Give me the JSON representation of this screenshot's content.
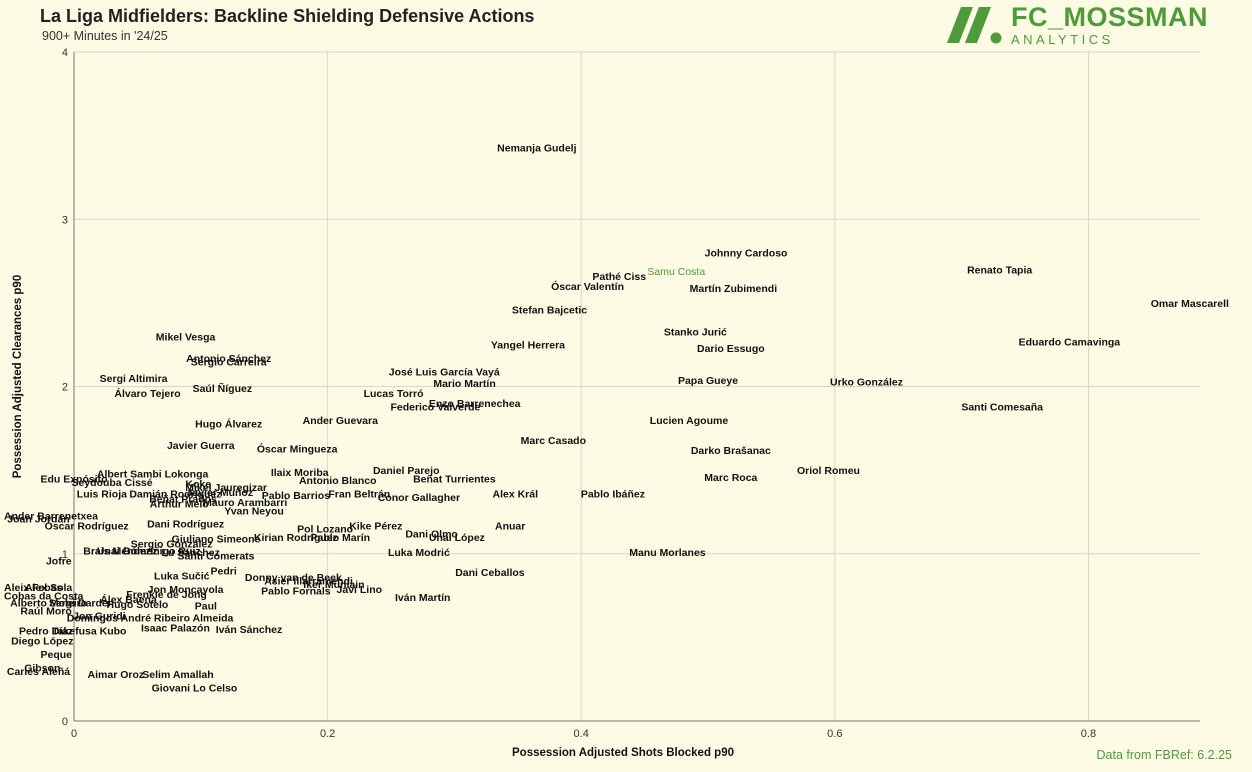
{
  "header": {
    "title": "La Liga Midfielders: Backline Shielding Defensive Actions",
    "subtitle": "900+ Minutes in '24/25"
  },
  "logo": {
    "main": "FC_MOSSMAN",
    "sub": "ANALYTICS"
  },
  "footer": {
    "source": "Data from FBRef: 6.2.25"
  },
  "colors": {
    "background": "#fdfbe3",
    "accent": "#4f9a3b",
    "grid": "#d9d6c4",
    "text": "#111111"
  },
  "chart_data": {
    "type": "scatter",
    "xlabel": "Possession Adjusted Shots Blocked p90",
    "ylabel": "Possession Adjusted Clearances p90",
    "xlim": [
      0,
      0.88
    ],
    "ylim": [
      0,
      4
    ],
    "xticks": [
      0,
      0.2,
      0.4,
      0.6,
      0.8
    ],
    "yticks": [
      0,
      1,
      2,
      3,
      4
    ],
    "grid": true,
    "highlight": "Samu Costa",
    "points": [
      {
        "label": "Nemanja Gudelj",
        "x": 0.365,
        "y": 3.43
      },
      {
        "label": "Johnny Cardoso",
        "x": 0.53,
        "y": 2.8
      },
      {
        "label": "Samu Costa",
        "x": 0.475,
        "y": 2.69
      },
      {
        "label": "Pathé Ciss",
        "x": 0.43,
        "y": 2.66
      },
      {
        "label": "Óscar Valentín",
        "x": 0.405,
        "y": 2.6
      },
      {
        "label": "Martín Zubimendi",
        "x": 0.52,
        "y": 2.59
      },
      {
        "label": "Renato Tapia",
        "x": 0.73,
        "y": 2.7
      },
      {
        "label": "Omar Mascarell",
        "x": 0.88,
        "y": 2.5
      },
      {
        "label": "Stefan Bajcetic",
        "x": 0.375,
        "y": 2.46
      },
      {
        "label": "Stanko Jurić",
        "x": 0.49,
        "y": 2.33
      },
      {
        "label": "Eduardo Camavinga",
        "x": 0.785,
        "y": 2.27
      },
      {
        "label": "Yangel Herrera",
        "x": 0.358,
        "y": 2.25
      },
      {
        "label": "Dario Essugo",
        "x": 0.518,
        "y": 2.23
      },
      {
        "label": "Mikel Vesga",
        "x": 0.088,
        "y": 2.3
      },
      {
        "label": "Antonio Sánchez",
        "x": 0.122,
        "y": 2.17
      },
      {
        "label": "Sergio Carreira",
        "x": 0.122,
        "y": 2.15
      },
      {
        "label": "José Luis García Vayá",
        "x": 0.292,
        "y": 2.09
      },
      {
        "label": "Mario Martín",
        "x": 0.308,
        "y": 2.02
      },
      {
        "label": "Sergi Altimira",
        "x": 0.047,
        "y": 2.05
      },
      {
        "label": "Papa Gueye",
        "x": 0.5,
        "y": 2.04
      },
      {
        "label": "Urko González",
        "x": 0.625,
        "y": 2.03
      },
      {
        "label": "Saúl Ñíguez",
        "x": 0.117,
        "y": 1.99
      },
      {
        "label": "Álvaro Tejero",
        "x": 0.058,
        "y": 1.96
      },
      {
        "label": "Lucas Torró",
        "x": 0.252,
        "y": 1.96
      },
      {
        "label": "Enzo Barrenechea",
        "x": 0.316,
        "y": 1.9
      },
      {
        "label": "Federico Valverde",
        "x": 0.285,
        "y": 1.88
      },
      {
        "label": "Santi Comesaña",
        "x": 0.732,
        "y": 1.88
      },
      {
        "label": "Ander Guevara",
        "x": 0.21,
        "y": 1.8
      },
      {
        "label": "Lucien Agoume",
        "x": 0.485,
        "y": 1.8
      },
      {
        "label": "Hugo Álvarez",
        "x": 0.122,
        "y": 1.78
      },
      {
        "label": "Marc Casado",
        "x": 0.378,
        "y": 1.68
      },
      {
        "label": "Javier Guerra",
        "x": 0.1,
        "y": 1.65
      },
      {
        "label": "Óscar Mingueza",
        "x": 0.176,
        "y": 1.63
      },
      {
        "label": "Darko Brašanac",
        "x": 0.518,
        "y": 1.62
      },
      {
        "label": "Daniel Parejo",
        "x": 0.262,
        "y": 1.5
      },
      {
        "label": "Oriol Romeu",
        "x": 0.595,
        "y": 1.5
      },
      {
        "label": "Ilaix Moriba",
        "x": 0.178,
        "y": 1.49
      },
      {
        "label": "Albert Sambi Lokonga",
        "x": 0.062,
        "y": 1.48
      },
      {
        "label": "Edu Expósito",
        "x": 0.0,
        "y": 1.45
      },
      {
        "label": "Marc Roca",
        "x": 0.518,
        "y": 1.46
      },
      {
        "label": "Beñat Turrientes",
        "x": 0.3,
        "y": 1.45
      },
      {
        "label": "Antonio Blanco",
        "x": 0.208,
        "y": 1.44
      },
      {
        "label": "Seydouba Cissé",
        "x": 0.03,
        "y": 1.43
      },
      {
        "label": "Koke",
        "x": 0.098,
        "y": 1.42
      },
      {
        "label": "Mikel Jauregizar",
        "x": 0.12,
        "y": 1.4
      },
      {
        "label": "Javier Muñoz",
        "x": 0.115,
        "y": 1.37
      },
      {
        "label": "Luis Rioja",
        "x": 0.022,
        "y": 1.36
      },
      {
        "label": "Damián Rodríguez",
        "x": 0.08,
        "y": 1.36
      },
      {
        "label": "Alex Král",
        "x": 0.348,
        "y": 1.36
      },
      {
        "label": "Pablo Ibáñez",
        "x": 0.425,
        "y": 1.36
      },
      {
        "label": "Fran Beltrán",
        "x": 0.225,
        "y": 1.36
      },
      {
        "label": "Pablo Barrios",
        "x": 0.175,
        "y": 1.35
      },
      {
        "label": "Conor Gallagher",
        "x": 0.272,
        "y": 1.34
      },
      {
        "label": "Beñat Prados",
        "x": 0.086,
        "y": 1.33
      },
      {
        "label": "Mauro Arambarri",
        "x": 0.135,
        "y": 1.31
      },
      {
        "label": "Arthur Melo",
        "x": 0.083,
        "y": 1.3
      },
      {
        "label": "Yvan Neyou",
        "x": 0.142,
        "y": 1.26
      },
      {
        "label": "Ander Barrenetxea",
        "x": -0.04,
        "y": 1.23
      },
      {
        "label": "Joan Jordán",
        "x": -0.028,
        "y": 1.21
      },
      {
        "label": "Óscar Rodríguez",
        "x": 0.01,
        "y": 1.17
      },
      {
        "label": "Dani Rodríguez",
        "x": 0.088,
        "y": 1.18
      },
      {
        "label": "Kike Pérez",
        "x": 0.238,
        "y": 1.17
      },
      {
        "label": "Anuar",
        "x": 0.344,
        "y": 1.17
      },
      {
        "label": "Pol Lozano",
        "x": 0.198,
        "y": 1.15
      },
      {
        "label": "Dani Olmo",
        "x": 0.282,
        "y": 1.12
      },
      {
        "label": "Unai López",
        "x": 0.302,
        "y": 1.1
      },
      {
        "label": "Giuliano Simeone",
        "x": 0.112,
        "y": 1.09
      },
      {
        "label": "Kirian Rodríguez",
        "x": 0.175,
        "y": 1.1
      },
      {
        "label": "Pablo Marín",
        "x": 0.21,
        "y": 1.1
      },
      {
        "label": "Sergio González",
        "x": 0.077,
        "y": 1.06
      },
      {
        "label": "Brais Méndez",
        "x": 0.034,
        "y": 1.02
      },
      {
        "label": "Unai Gómez",
        "x": 0.042,
        "y": 1.02
      },
      {
        "label": "Iñigo Ruiz",
        "x": 0.08,
        "y": 1.02
      },
      {
        "label": "Lu Sánchez",
        "x": 0.092,
        "y": 1.01
      },
      {
        "label": "Santi Comerats",
        "x": 0.112,
        "y": 0.99
      },
      {
        "label": "Luka Modrić",
        "x": 0.272,
        "y": 1.01
      },
      {
        "label": "Manu Morlanes",
        "x": 0.468,
        "y": 1.01
      },
      {
        "label": "Jofre",
        "x": -0.012,
        "y": 0.96
      },
      {
        "label": "Dani Ceballos",
        "x": 0.328,
        "y": 0.89
      },
      {
        "label": "Pedri",
        "x": 0.118,
        "y": 0.9
      },
      {
        "label": "Luka Sučić",
        "x": 0.085,
        "y": 0.87
      },
      {
        "label": "Donny van de Beek",
        "x": 0.173,
        "y": 0.86
      },
      {
        "label": "Asier Illarramendi",
        "x": 0.185,
        "y": 0.84
      },
      {
        "label": "Iker Muniain",
        "x": 0.205,
        "y": 0.82
      },
      {
        "label": "Jon Moncayola",
        "x": 0.088,
        "y": 0.79
      },
      {
        "label": "Aleix Febas",
        "x": -0.04,
        "y": 0.8
      },
      {
        "label": "Alex Sola",
        "x": -0.02,
        "y": 0.8
      },
      {
        "label": "Frenkie de Jong",
        "x": 0.073,
        "y": 0.76
      },
      {
        "label": "Pablo Fornals",
        "x": 0.175,
        "y": 0.78
      },
      {
        "label": "Javi Lino",
        "x": 0.225,
        "y": 0.79
      },
      {
        "label": "Cobas da Costa",
        "x": -0.027,
        "y": 0.75
      },
      {
        "label": "Iván Martín",
        "x": 0.275,
        "y": 0.74
      },
      {
        "label": "Álex Baena",
        "x": 0.043,
        "y": 0.73
      },
      {
        "label": "Sergi Darder",
        "x": 0.005,
        "y": 0.71
      },
      {
        "label": "Hugo Sotelo",
        "x": 0.05,
        "y": 0.7
      },
      {
        "label": "Alberto Moleiro",
        "x": -0.02,
        "y": 0.71
      },
      {
        "label": "Paul",
        "x": 0.104,
        "y": 0.69
      },
      {
        "label": "Raúl Moro",
        "x": -0.022,
        "y": 0.66
      },
      {
        "label": "Jon Guridi",
        "x": 0.02,
        "y": 0.63
      },
      {
        "label": "Domingos André Ribeiro Almeida",
        "x": 0.06,
        "y": 0.62
      },
      {
        "label": "Isaac Palazón",
        "x": 0.08,
        "y": 0.56
      },
      {
        "label": "Iván Sánchez",
        "x": 0.138,
        "y": 0.55
      },
      {
        "label": "Takefusa Kubo",
        "x": 0.012,
        "y": 0.54
      },
      {
        "label": "Pedro Díaz",
        "x": -0.022,
        "y": 0.54
      },
      {
        "label": "Diego López",
        "x": -0.025,
        "y": 0.48
      },
      {
        "label": "Peque",
        "x": -0.014,
        "y": 0.4
      },
      {
        "label": "Gibson",
        "x": -0.025,
        "y": 0.32
      },
      {
        "label": "Carles Aleñá",
        "x": -0.028,
        "y": 0.3
      },
      {
        "label": "Aimar Oroz",
        "x": 0.033,
        "y": 0.28
      },
      {
        "label": "Selim Amallah",
        "x": 0.082,
        "y": 0.28
      },
      {
        "label": "Giovani Lo Celso",
        "x": 0.095,
        "y": 0.2
      }
    ]
  }
}
